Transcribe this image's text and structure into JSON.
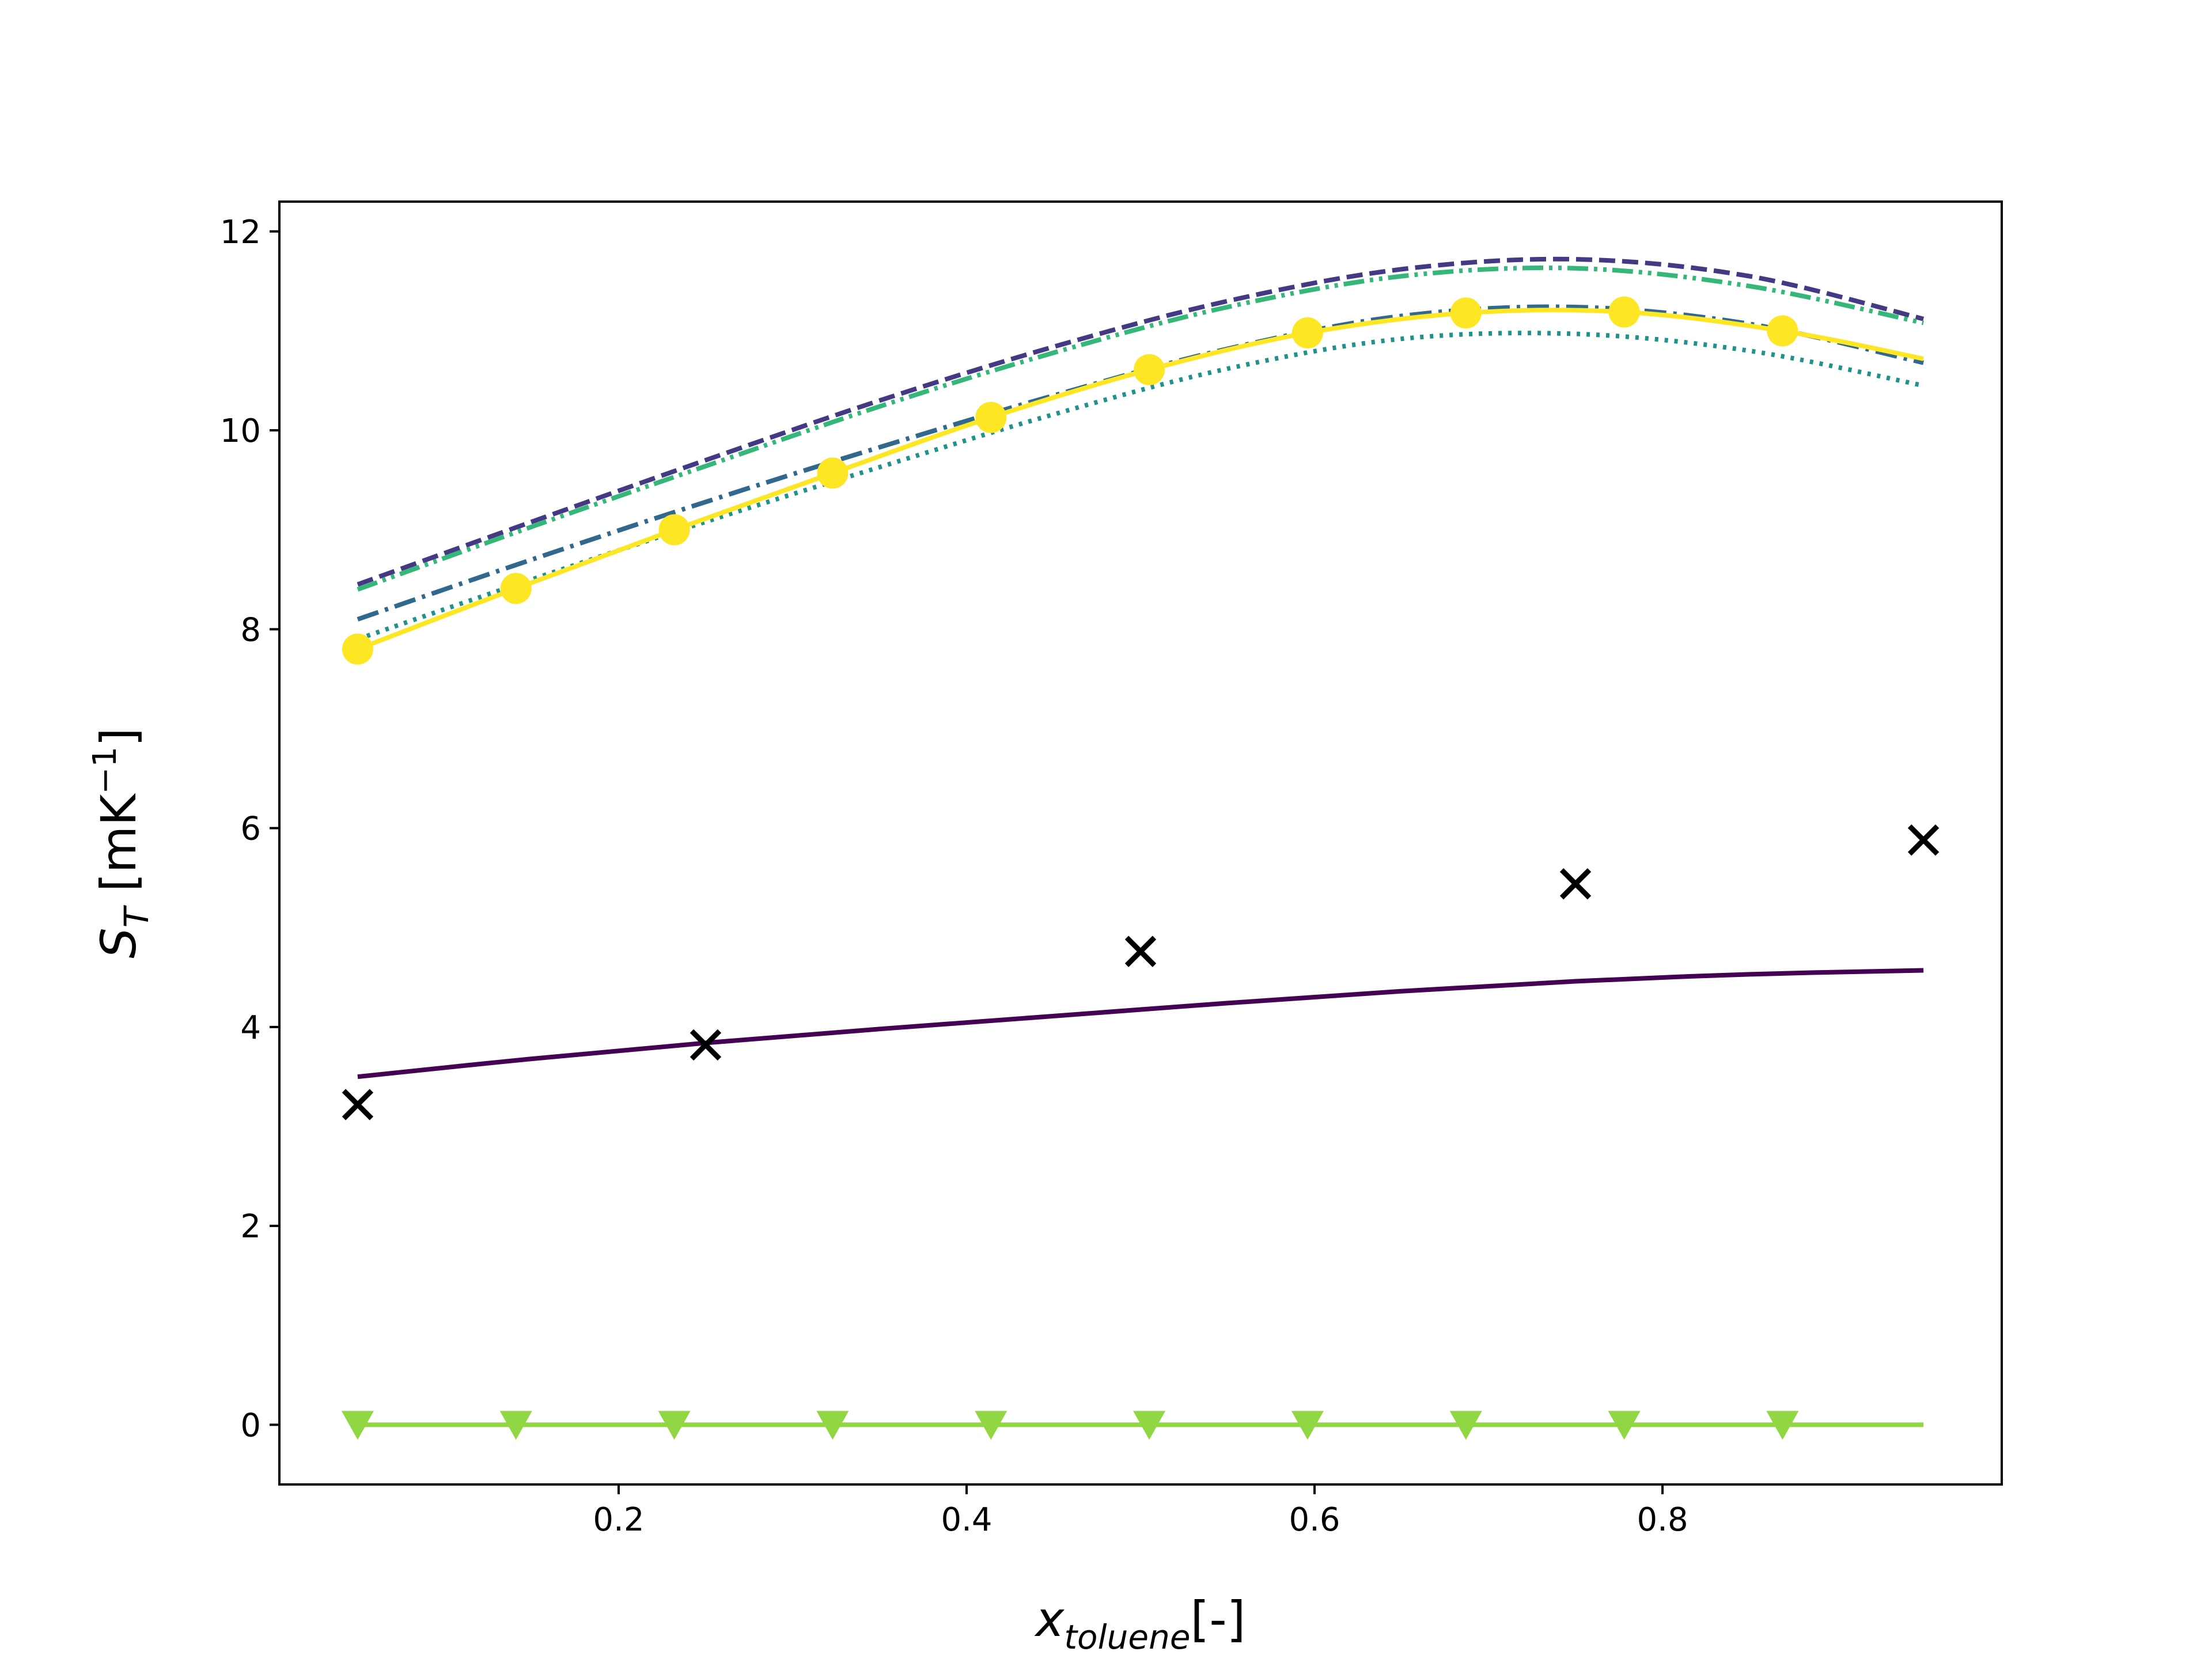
{
  "chart_data": {
    "type": "line",
    "xlabel": {
      "main": "x",
      "sub": "toluene",
      "suffix": "[-]"
    },
    "ylabel": {
      "main": "S",
      "sub": "T",
      "suffix": " [mK",
      "sup": "−1",
      "close": "]"
    },
    "xlim": [
      0.005,
      0.995
    ],
    "ylim": [
      -0.6,
      12.3
    ],
    "xticks": [
      0.2,
      0.4,
      0.6,
      0.8
    ],
    "xtick_labels": [
      "0.2",
      "0.4",
      "0.6",
      "0.8"
    ],
    "yticks": [
      0,
      2,
      4,
      6,
      8,
      10,
      12
    ],
    "ytick_labels": [
      "0",
      "2",
      "4",
      "6",
      "8",
      "10",
      "12"
    ],
    "grid": false,
    "legend": "none",
    "series": [
      {
        "color": "#440154",
        "dash": "none",
        "marker": "none",
        "x": [
          0.05,
          0.15,
          0.25,
          0.35,
          0.45,
          0.55,
          0.65,
          0.75,
          0.85,
          0.95
        ],
        "y": [
          3.5,
          3.68,
          3.84,
          3.98,
          4.11,
          4.24,
          4.36,
          4.46,
          4.53,
          4.57
        ]
      },
      {
        "color": "#443983",
        "dash": "dashed",
        "marker": "none",
        "x": [
          0.05,
          0.15,
          0.25,
          0.35,
          0.45,
          0.55,
          0.65,
          0.75,
          0.85,
          0.95
        ],
        "y": [
          8.45,
          9.08,
          9.7,
          10.3,
          10.84,
          11.3,
          11.62,
          11.72,
          11.55,
          11.12
        ]
      },
      {
        "color": "#31688e",
        "dash": "dashdot",
        "marker": "none",
        "x": [
          0.05,
          0.15,
          0.25,
          0.35,
          0.45,
          0.55,
          0.65,
          0.75,
          0.85,
          0.95
        ],
        "y": [
          8.1,
          8.7,
          9.28,
          9.83,
          10.35,
          10.82,
          11.15,
          11.24,
          11.07,
          10.68
        ]
      },
      {
        "color": "#21918c",
        "dash": "dotted",
        "marker": "none",
        "x": [
          0.05,
          0.15,
          0.25,
          0.35,
          0.45,
          0.55,
          0.65,
          0.75,
          0.85,
          0.95
        ],
        "y": [
          7.9,
          8.5,
          9.08,
          9.63,
          10.16,
          10.62,
          10.92,
          10.97,
          10.8,
          10.45
        ]
      },
      {
        "color": "#35b779",
        "dash": "dashdotdot",
        "marker": "none",
        "x": [
          0.05,
          0.15,
          0.25,
          0.35,
          0.45,
          0.55,
          0.65,
          0.75,
          0.85,
          0.95
        ],
        "y": [
          8.4,
          9.03,
          9.64,
          10.24,
          10.78,
          11.24,
          11.55,
          11.63,
          11.45,
          11.08
        ]
      },
      {
        "color": "#90d743",
        "dash": "none",
        "marker": "triangle-down",
        "x": [
          0.05,
          0.141,
          0.232,
          0.323,
          0.414,
          0.505,
          0.596,
          0.687,
          0.778,
          0.869,
          0.95
        ],
        "y": [
          0,
          0,
          0,
          0,
          0,
          0,
          0,
          0,
          0,
          0,
          0
        ],
        "marker_x": [
          0.05,
          0.141,
          0.232,
          0.323,
          0.414,
          0.505,
          0.596,
          0.687,
          0.778,
          0.869
        ]
      },
      {
        "color": "#fde725",
        "dash": "none",
        "marker": "circle",
        "x": [
          0.05,
          0.141,
          0.232,
          0.323,
          0.414,
          0.505,
          0.596,
          0.687,
          0.778,
          0.869,
          0.95
        ],
        "y": [
          7.8,
          8.41,
          9.0,
          9.57,
          10.13,
          10.61,
          10.98,
          11.18,
          11.19,
          11.0,
          10.72
        ],
        "marker_x": [
          0.05,
          0.141,
          0.232,
          0.323,
          0.414,
          0.505,
          0.596,
          0.687,
          0.778,
          0.869
        ]
      },
      {
        "color": "#000000",
        "dash": "none",
        "marker": "x",
        "line": false,
        "x": [
          0.05,
          0.25,
          0.5,
          0.75,
          0.95
        ],
        "y": [
          3.22,
          3.82,
          4.76,
          5.44,
          5.88
        ]
      }
    ]
  }
}
